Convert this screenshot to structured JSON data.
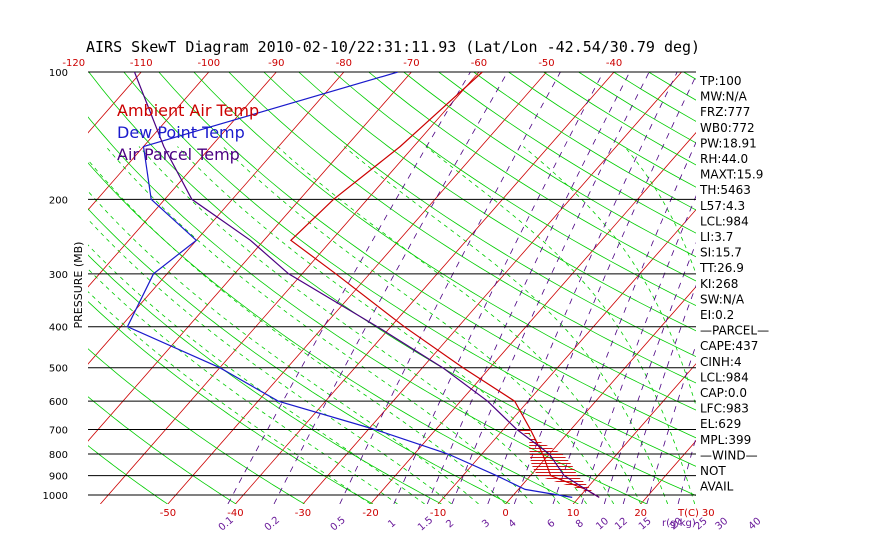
{
  "title": "AIRS SkewT Diagram 2010-02-10/22:31:11.93 (Lat/Lon -42.54/30.79 deg)",
  "chart_data": {
    "type": "skew-t",
    "ylabel": "PRESSURE (MB)",
    "y_scale": "log",
    "ylim": [
      1050,
      100
    ],
    "pressure_ticks": [
      100,
      200,
      300,
      400,
      500,
      600,
      700,
      800,
      900,
      1000
    ],
    "top_temp_ticks": [
      -120,
      -110,
      -100,
      -90,
      -80,
      -70,
      -60,
      -50,
      -40
    ],
    "bottom_temp_ticks": [
      -50,
      -40,
      -30,
      -20,
      -10,
      0,
      10,
      20,
      30
    ],
    "bottom_temp_unit": "T(C)",
    "mixing_ratio_ticks": [
      "0.1",
      "0.2",
      "0.5",
      "1",
      "1.5",
      "2",
      "3",
      "4",
      "6",
      "8",
      "10",
      "12",
      "15",
      "20",
      "25",
      "30",
      "40"
    ],
    "mixing_ratio_unit": "r(g/kg)",
    "series": [
      {
        "name": "Ambient Air Temp",
        "color": "#cc0000",
        "points": [
          {
            "p": 100,
            "t": -59.5
          },
          {
            "p": 150,
            "t": -62
          },
          {
            "p": 200,
            "t": -65
          },
          {
            "p": 250,
            "t": -66
          },
          {
            "p": 300,
            "t": -55
          },
          {
            "p": 400,
            "t": -38
          },
          {
            "p": 500,
            "t": -24
          },
          {
            "p": 600,
            "t": -12
          },
          {
            "p": 700,
            "t": -6
          },
          {
            "p": 800,
            "t": -1
          },
          {
            "p": 900,
            "t": 3
          },
          {
            "p": 970,
            "t": 10
          },
          {
            "p": 1013,
            "t": 13
          }
        ]
      },
      {
        "name": "Dew Point Temp",
        "color": "#1a1acc",
        "points": [
          {
            "p": 100,
            "t": -72
          },
          {
            "p": 150,
            "t": -100
          },
          {
            "p": 200,
            "t": -92
          },
          {
            "p": 250,
            "t": -80
          },
          {
            "p": 300,
            "t": -82
          },
          {
            "p": 400,
            "t": -79
          },
          {
            "p": 500,
            "t": -60
          },
          {
            "p": 600,
            "t": -47
          },
          {
            "p": 700,
            "t": -29
          },
          {
            "p": 800,
            "t": -15
          },
          {
            "p": 900,
            "t": -5
          },
          {
            "p": 970,
            "t": 1
          },
          {
            "p": 1013,
            "t": 9
          }
        ]
      },
      {
        "name": "Air Parcel Temp",
        "color": "#4b0082",
        "points": [
          {
            "p": 100,
            "t": -111
          },
          {
            "p": 150,
            "t": -97
          },
          {
            "p": 200,
            "t": -86
          },
          {
            "p": 250,
            "t": -72
          },
          {
            "p": 300,
            "t": -62
          },
          {
            "p": 400,
            "t": -42
          },
          {
            "p": 500,
            "t": -27
          },
          {
            "p": 600,
            "t": -16
          },
          {
            "p": 700,
            "t": -8
          },
          {
            "p": 800,
            "t": 0
          },
          {
            "p": 900,
            "t": 5
          },
          {
            "p": 970,
            "t": 10
          },
          {
            "p": 1013,
            "t": 13
          }
        ]
      }
    ],
    "colors": {
      "isotherm": "#cc0000",
      "dry_adiabat": "#00cc00",
      "moist_adiabat": "#00cc00",
      "mixing_ratio": "#4b0082",
      "isobar": "#000000",
      "cape_hatch": "#cc0000"
    }
  },
  "indices": [
    "TP:100",
    "MW:N/A",
    "FRZ:777",
    "WB0:772",
    "PW:18.91",
    "RH:44.0",
    "MAXT:15.9",
    "TH:5463",
    "L57:4.3",
    "LCL:984",
    "LI:3.7",
    "SI:15.7",
    "TT:26.9",
    "KI:268",
    "SW:N/A",
    "EI:0.2",
    "—PARCEL—",
    "CAPE:437",
    "CINH:4",
    "LCL:984",
    "CAP:0.0",
    "LFC:983",
    "EL:629",
    "MPL:399",
    "—WIND—",
    "NOT",
    "AVAIL"
  ]
}
